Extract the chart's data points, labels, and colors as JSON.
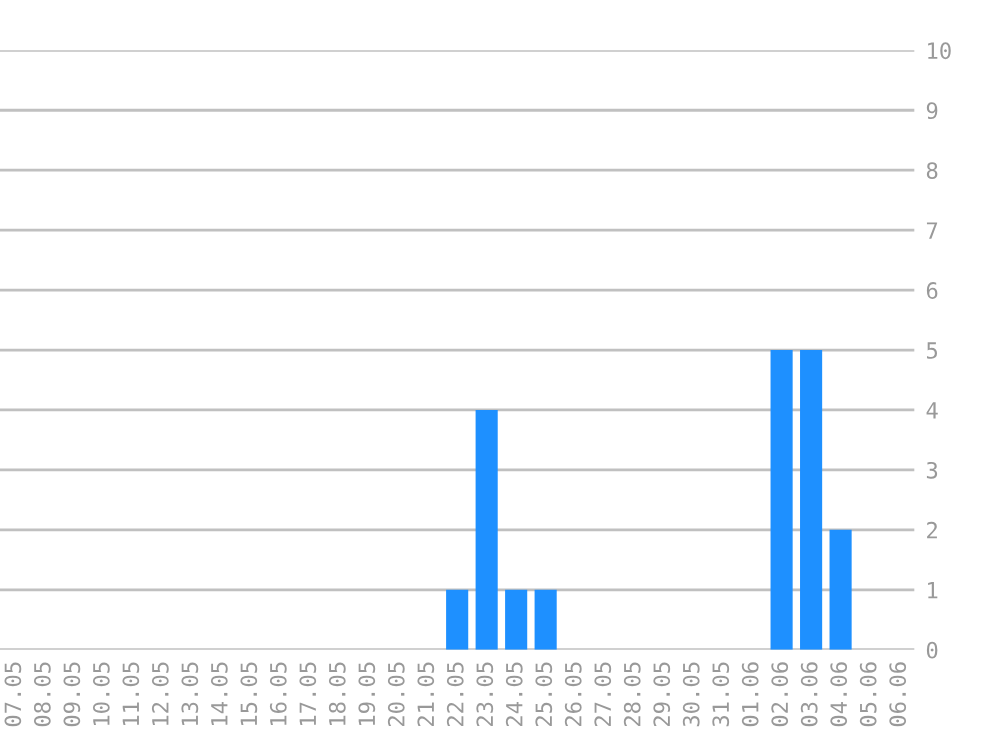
{
  "chart_data": {
    "type": "bar",
    "categories": [
      "07.05",
      "08.05",
      "09.05",
      "10.05",
      "11.05",
      "12.05",
      "13.05",
      "14.05",
      "15.05",
      "16.05",
      "17.05",
      "18.05",
      "19.05",
      "20.05",
      "21.05",
      "22.05",
      "23.05",
      "24.05",
      "25.05",
      "26.05",
      "27.05",
      "28.05",
      "29.05",
      "30.05",
      "31.05",
      "01.06",
      "02.06",
      "03.06",
      "04.06",
      "05.06",
      "06.06"
    ],
    "values": [
      0,
      0,
      0,
      0,
      0,
      0,
      0,
      0,
      0,
      0,
      0,
      0,
      0,
      0,
      0,
      1,
      4,
      1,
      1,
      0,
      0,
      0,
      0,
      0,
      0,
      0,
      5,
      5,
      2,
      0,
      0
    ],
    "color": "#1e90ff",
    "ylim": [
      0,
      10
    ],
    "yticks": [
      0,
      1,
      2,
      3,
      4,
      5,
      6,
      7,
      8,
      9,
      10
    ],
    "grid": "y"
  }
}
